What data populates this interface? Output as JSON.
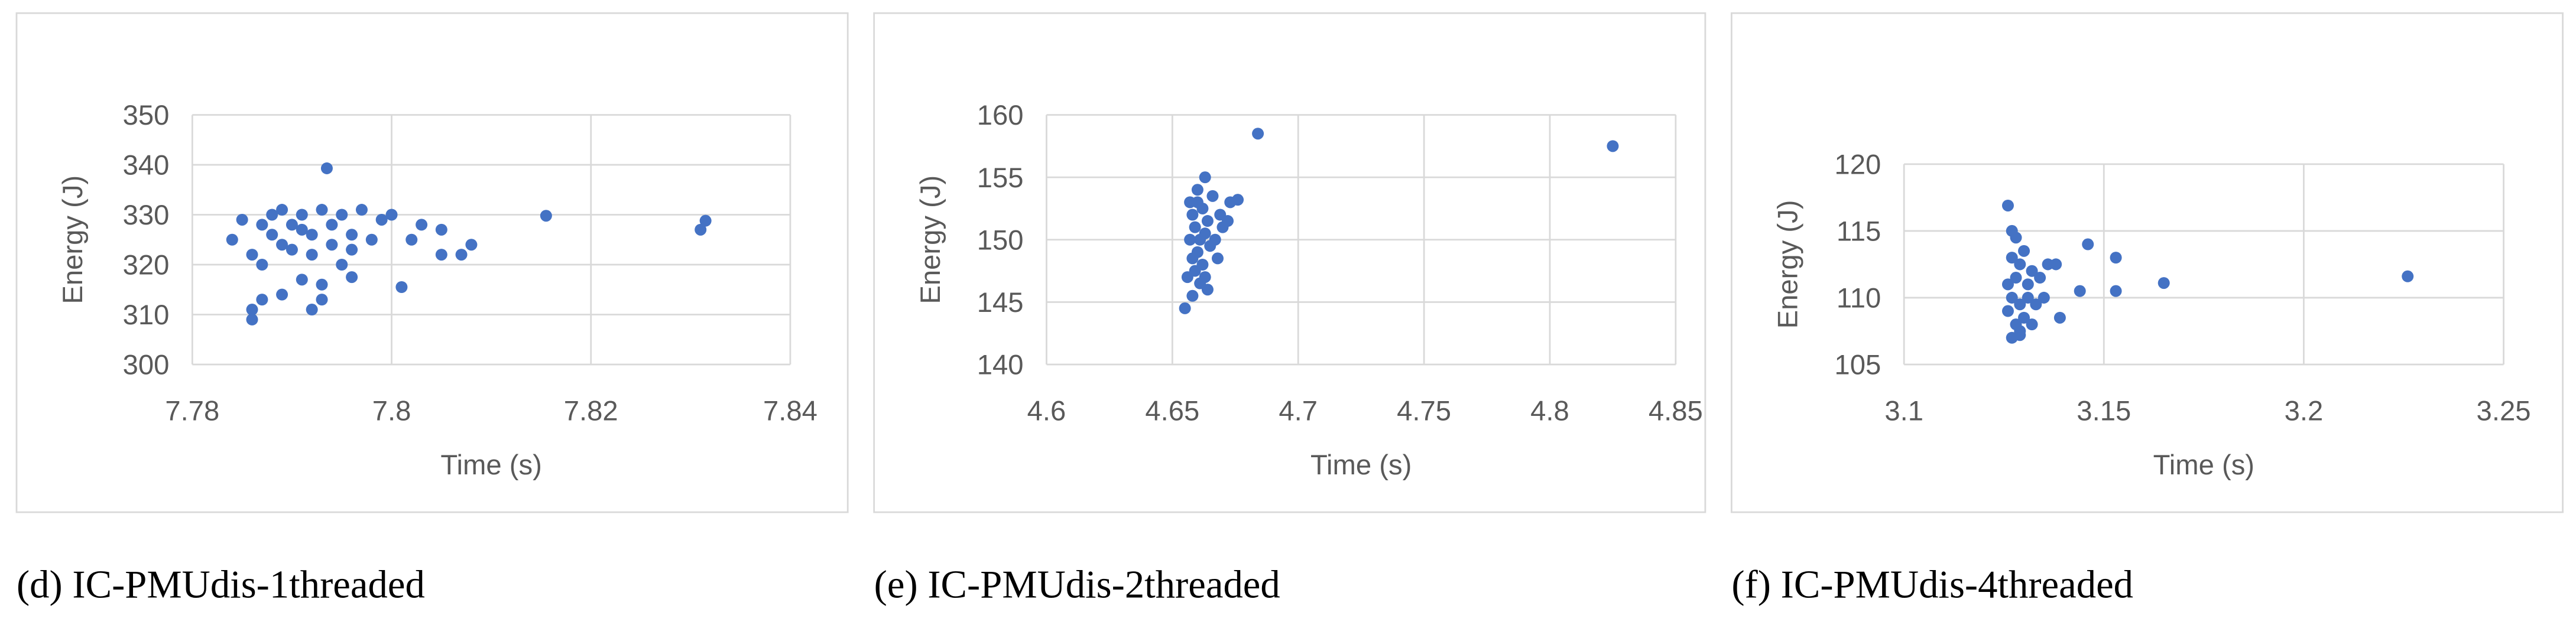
{
  "chart_data": [
    {
      "type": "scatter",
      "caption": "(d) IC-PMUdis-1threaded",
      "xlabel": "Time (s)",
      "ylabel": "Energy (J)",
      "color": "#4472c4",
      "grid": true,
      "xlim": [
        7.78,
        7.84
      ],
      "xticks": [
        7.78,
        7.8,
        7.82,
        7.84
      ],
      "ylim": [
        300,
        350
      ],
      "yticks": [
        300,
        310,
        320,
        330,
        340,
        350
      ],
      "x": [
        7.784,
        7.785,
        7.786,
        7.786,
        7.786,
        7.787,
        7.787,
        7.788,
        7.788,
        7.789,
        7.789,
        7.79,
        7.79,
        7.791,
        7.791,
        7.792,
        7.792,
        7.793,
        7.793,
        7.7935,
        7.794,
        7.794,
        7.795,
        7.795,
        7.796,
        7.796,
        7.797,
        7.798,
        7.799,
        7.8,
        7.801,
        7.802,
        7.803,
        7.805,
        7.805,
        7.807,
        7.808,
        7.8155,
        7.831,
        7.8315,
        7.787,
        7.789,
        7.791,
        7.792,
        7.793,
        7.796
      ],
      "values": [
        325,
        329,
        311,
        309,
        322,
        328,
        313,
        330,
        326,
        314,
        331,
        323,
        328,
        317,
        330,
        311,
        326,
        313,
        331,
        339.3,
        324,
        328,
        320,
        330,
        317.5,
        326,
        331,
        325,
        329,
        330,
        315.5,
        325,
        328,
        327,
        322,
        322,
        324,
        329.8,
        327,
        328.8,
        320,
        324,
        327,
        322,
        316,
        323
      ]
    },
    {
      "type": "scatter",
      "caption": "(e) IC-PMUdis-2threaded",
      "xlabel": "Time (s)",
      "ylabel": "Energy (J)",
      "color": "#4472c4",
      "grid": true,
      "xlim": [
        4.6,
        4.85
      ],
      "xticks": [
        4.6,
        4.65,
        4.7,
        4.75,
        4.8,
        4.85
      ],
      "ylim": [
        140,
        160
      ],
      "yticks": [
        140,
        145,
        150,
        155,
        160
      ],
      "x": [
        4.655,
        4.656,
        4.657,
        4.657,
        4.658,
        4.658,
        4.659,
        4.659,
        4.66,
        4.66,
        4.661,
        4.661,
        4.662,
        4.662,
        4.663,
        4.663,
        4.664,
        4.664,
        4.665,
        4.666,
        4.667,
        4.668,
        4.669,
        4.67,
        4.672,
        4.673,
        4.676,
        4.684,
        4.825,
        4.663,
        4.66,
        4.658
      ],
      "values": [
        144.5,
        147,
        150,
        153,
        148.5,
        152,
        147.5,
        151,
        149,
        154,
        150,
        146.5,
        152.5,
        148,
        155,
        150.5,
        146,
        151.5,
        149.5,
        153.5,
        150,
        148.5,
        152,
        151,
        151.5,
        153,
        153.2,
        158.5,
        157.5,
        147,
        153,
        145.5
      ]
    },
    {
      "type": "scatter",
      "caption": "(f) IC-PMUdis-4threaded",
      "xlabel": "Time (s)",
      "ylabel": "Energy (J)",
      "color": "#4472c4",
      "grid": true,
      "xlim": [
        3.1,
        3.25
      ],
      "xticks": [
        3.1,
        3.15,
        3.2,
        3.25
      ],
      "ylim": [
        105,
        120
      ],
      "yticks": [
        105,
        110,
        115,
        120
      ],
      "x": [
        3.126,
        3.126,
        3.126,
        3.127,
        3.127,
        3.127,
        3.128,
        3.128,
        3.128,
        3.129,
        3.129,
        3.129,
        3.13,
        3.13,
        3.131,
        3.131,
        3.132,
        3.132,
        3.133,
        3.134,
        3.135,
        3.136,
        3.138,
        3.139,
        3.144,
        3.146,
        3.153,
        3.153,
        3.165,
        3.226,
        3.127,
        3.129
      ],
      "values": [
        116.9,
        109,
        111,
        107,
        113,
        110,
        108,
        114.5,
        111.5,
        107.5,
        112.5,
        109.5,
        113.5,
        108.5,
        111,
        110,
        112,
        108,
        109.5,
        111.5,
        110,
        112.5,
        112.5,
        108.5,
        110.5,
        114,
        113,
        110.5,
        111.1,
        111.6,
        115,
        107.2
      ]
    }
  ]
}
